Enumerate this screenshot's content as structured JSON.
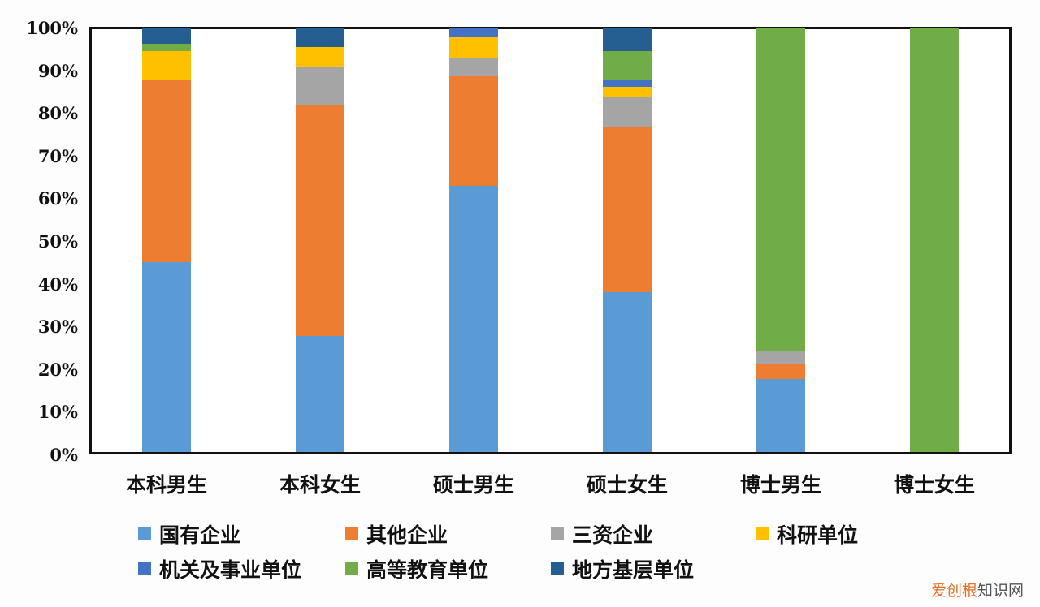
{
  "chart_data": {
    "type": "bar",
    "stacked": true,
    "title": "",
    "xlabel": "",
    "ylabel": "",
    "ylim": [
      0,
      100
    ],
    "yticks": [
      "0%",
      "10%",
      "20%",
      "30%",
      "40%",
      "50%",
      "60%",
      "70%",
      "80%",
      "90%",
      "100%"
    ],
    "categories": [
      "本科男生",
      "本科女生",
      "硕士男生",
      "硕士女生",
      "博士男生",
      "博士女生"
    ],
    "series": [
      {
        "name": "国有企业",
        "color": "#5b9bd5",
        "values": [
          44.7,
          27.4,
          62.7,
          37.6,
          17.3,
          0
        ]
      },
      {
        "name": "其他企业",
        "color": "#ed7d31",
        "values": [
          42.8,
          54.3,
          25.9,
          39.0,
          3.6,
          0
        ]
      },
      {
        "name": "三资企业",
        "color": "#a5a5a5",
        "values": [
          0,
          9.0,
          4.2,
          6.9,
          3.1,
          0
        ]
      },
      {
        "name": "科研单位",
        "color": "#ffc000",
        "values": [
          7.0,
          4.7,
          5.1,
          2.6,
          0,
          0
        ]
      },
      {
        "name": "机关及事业单位",
        "color": "#4472c4",
        "values": [
          0,
          0,
          2.1,
          1.5,
          0,
          0
        ]
      },
      {
        "name": "高等教育单位",
        "color": "#70ad47",
        "values": [
          1.7,
          0,
          0,
          6.9,
          76.0,
          100
        ]
      },
      {
        "name": "地方基层单位",
        "color": "#255e91",
        "values": [
          3.8,
          4.6,
          0,
          5.5,
          0,
          0
        ]
      }
    ],
    "legend_position": "bottom",
    "grid": false
  },
  "watermark": {
    "part1": "爱创根",
    "part2": "知识网"
  }
}
